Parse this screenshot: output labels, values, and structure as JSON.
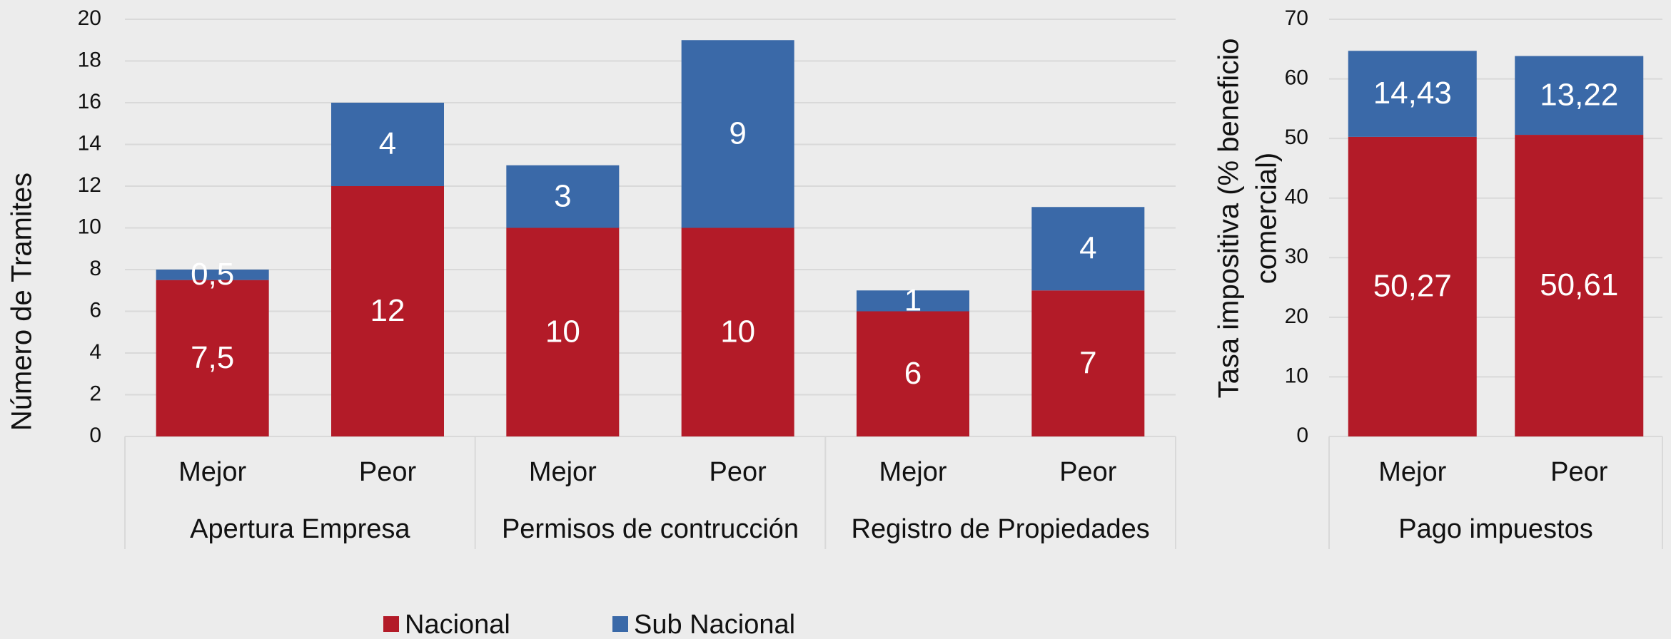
{
  "chart_data": [
    {
      "type": "stacked_bar",
      "y_label": "Número de Tramites",
      "groups": [
        {
          "label": "Apertura Empresa",
          "categories": [
            "Mejor",
            "Peor"
          ]
        },
        {
          "label": "Permisos de contrucción",
          "categories": [
            "Mejor",
            "Peor"
          ]
        },
        {
          "label": "Registro de Propiedades",
          "categories": [
            "Mejor",
            "Peor"
          ]
        }
      ],
      "series": [
        {
          "name": "Nacional",
          "color": "#b31b28",
          "values": [
            7.5,
            12,
            10,
            10,
            6,
            7
          ],
          "value_labels": [
            "7,5",
            "12",
            "10",
            "10",
            "6",
            "7"
          ]
        },
        {
          "name": "Sub Nacional",
          "color": "#3a69a8",
          "values": [
            0.5,
            4,
            3,
            9,
            1,
            4
          ],
          "value_labels": [
            "0,5",
            "4",
            "3",
            "9",
            "1",
            "4"
          ]
        }
      ],
      "ylim": [
        0,
        20
      ],
      "yticks": [
        0,
        2,
        4,
        6,
        8,
        10,
        12,
        14,
        16,
        18,
        20
      ],
      "grid": true,
      "legend": "bottom"
    },
    {
      "type": "stacked_bar",
      "y_label": [
        "Tasa impositiva (% beneficio",
        "comercial)"
      ],
      "groups": [
        {
          "label": "Pago impuestos",
          "categories": [
            "Mejor",
            "Peor"
          ]
        }
      ],
      "series": [
        {
          "color": "#b31b28",
          "values": [
            50.27,
            50.61
          ],
          "value_labels": [
            "50,27",
            "50,61"
          ]
        },
        {
          "color": "#3a69a8",
          "values": [
            14.43,
            13.22
          ],
          "value_labels": [
            "14,43",
            "13,22"
          ]
        }
      ],
      "ylim": [
        0,
        70
      ],
      "yticks": [
        0,
        10,
        20,
        30,
        40,
        50,
        60,
        70
      ],
      "grid": true
    }
  ]
}
